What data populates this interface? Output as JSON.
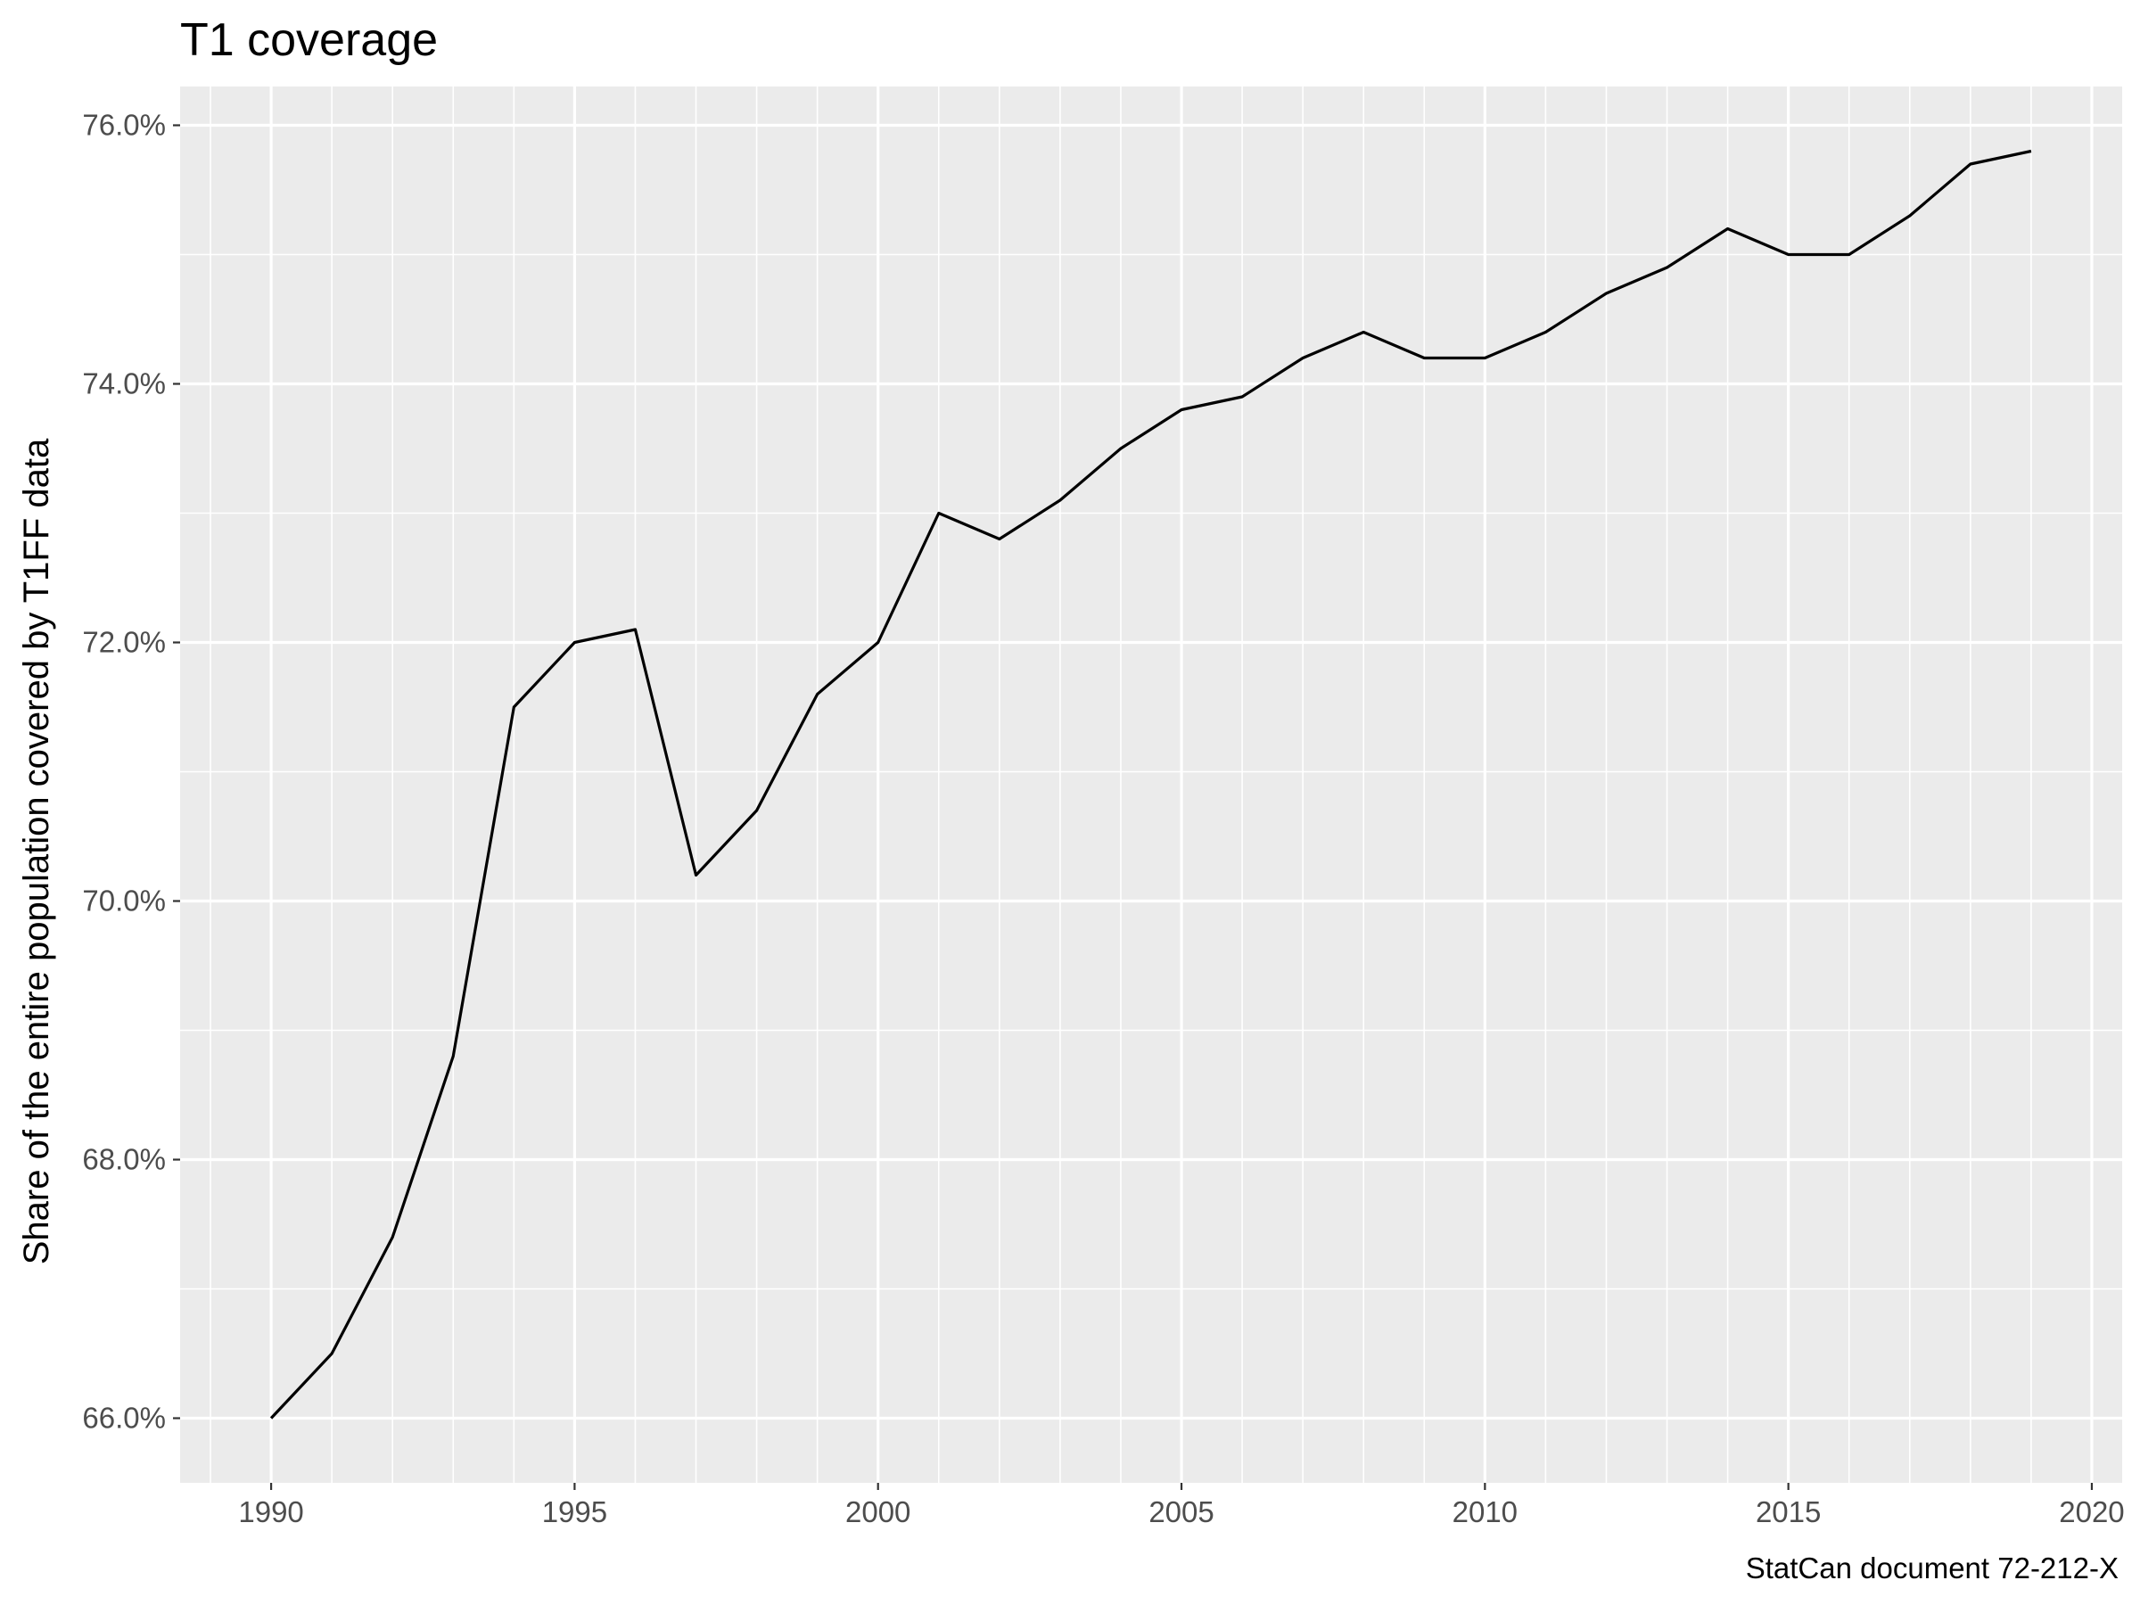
{
  "chart_data": {
    "type": "line",
    "title": "T1 coverage",
    "xlabel": "",
    "ylabel": "Share of the entire population covered by T1FF data",
    "caption": "StatCan document 72-212-X",
    "x": [
      1990,
      1991,
      1992,
      1993,
      1994,
      1995,
      1996,
      1997,
      1998,
      1999,
      2000,
      2001,
      2002,
      2003,
      2004,
      2005,
      2006,
      2007,
      2008,
      2009,
      2010,
      2011,
      2012,
      2013,
      2014,
      2015,
      2016,
      2017,
      2018,
      2019
    ],
    "series": [
      {
        "values": [
          66.0,
          66.5,
          67.4,
          68.8,
          71.5,
          72.0,
          72.1,
          70.2,
          70.7,
          71.6,
          72.0,
          73.0,
          72.8,
          73.1,
          73.5,
          73.8,
          73.9,
          74.2,
          74.4,
          74.2,
          74.2,
          74.4,
          74.7,
          74.9,
          75.2,
          75.0,
          75.0,
          75.3,
          75.7,
          75.8
        ],
        "color": "#000000"
      }
    ],
    "xlim": [
      1988.5,
      2020.5
    ],
    "ylim": [
      65.5,
      76.3
    ],
    "x_ticks": [
      1990,
      1995,
      2000,
      2005,
      2010,
      2015,
      2020
    ],
    "x_tick_labels": [
      "1990",
      "1995",
      "2000",
      "2005",
      "2010",
      "2015",
      "2020"
    ],
    "y_ticks": [
      66,
      68,
      70,
      72,
      74,
      76
    ],
    "y_tick_labels": [
      "66.0%",
      "68.0%",
      "70.0%",
      "72.0%",
      "74.0%",
      "76.0%"
    ],
    "grid": true,
    "panel_background": "#ebebeb",
    "grid_color": "#ffffff",
    "line_color": "#000000"
  }
}
